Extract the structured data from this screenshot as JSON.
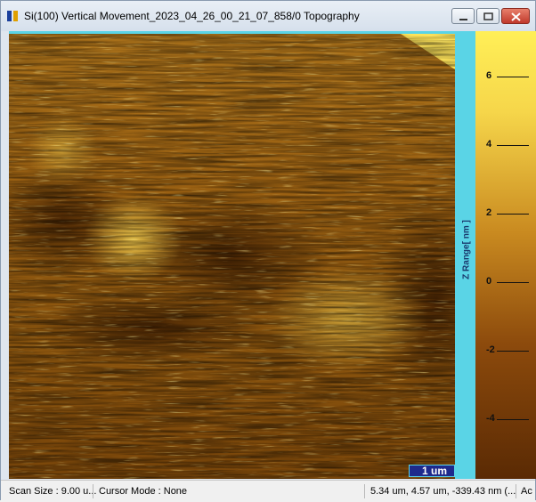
{
  "window": {
    "title": "Si(100) Vertical Movement_2023_04_26_00_21_07_858/0 Topography",
    "app_icon": "spm-image-icon",
    "controls": [
      "minimize-icon",
      "maximize-icon",
      "close-icon"
    ]
  },
  "image": {
    "type": "afm-topography-map",
    "scale_bar_label": "1 um"
  },
  "colorbar": {
    "axis_label": "Z Range[ nm ]",
    "ticks": [
      "6",
      "4",
      "2",
      "0",
      "-2",
      "-4"
    ],
    "tick_values": [
      6,
      4,
      2,
      0,
      -2,
      -4
    ],
    "colors": {
      "top": "#ffef57",
      "mid": "#c98a20",
      "bottom": "#5a2a04"
    }
  },
  "status": {
    "scan_size": "Scan Size : 9.00 u...",
    "cursor_mode": "Cursor Mode : None",
    "cursor_position": "5.34 um, 4.57 um, -339.43 nm (...",
    "extra": "Ac"
  }
}
